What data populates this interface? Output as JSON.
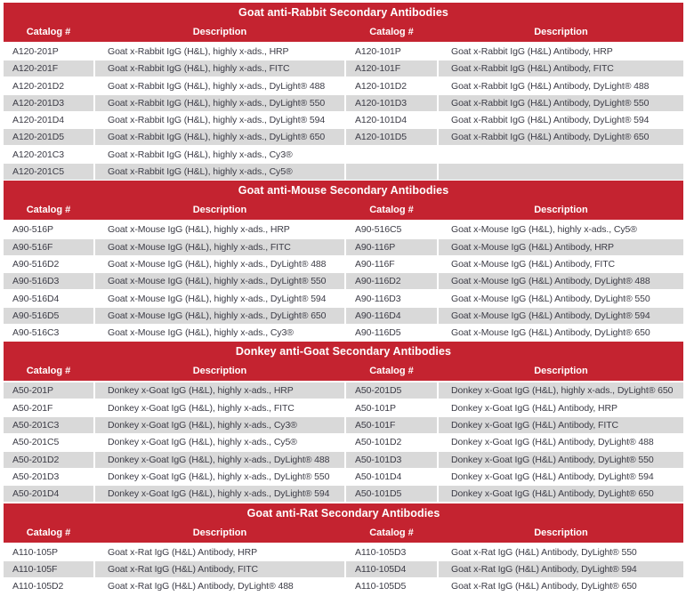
{
  "colors": {
    "banner_red": "#C42330",
    "stripe_gray": "#D9D9D9",
    "row_text": "#3C3C46",
    "header_text": "#FFFFFF"
  },
  "table": {
    "sections": [
      {
        "title": "Goat anti-Rabbit Secondary Antibodies",
        "columns": [
          "Catalog #",
          "Description",
          "Catalog #",
          "Description"
        ],
        "rows": [
          [
            "A120-201P",
            "Goat x-Rabbit IgG (H&L), highly x-ads., HRP",
            "A120-101P",
            "Goat x-Rabbit IgG (H&L) Antibody, HRP"
          ],
          [
            "A120-201F",
            "Goat x-Rabbit IgG (H&L), highly x-ads., FITC",
            "A120-101F",
            "Goat x-Rabbit IgG (H&L) Antibody, FITC"
          ],
          [
            "A120-201D2",
            "Goat x-Rabbit IgG (H&L), highly x-ads., DyLight® 488",
            "A120-101D2",
            "Goat x-Rabbit IgG (H&L) Antibody, DyLight® 488"
          ],
          [
            "A120-201D3",
            "Goat x-Rabbit IgG (H&L), highly x-ads., DyLight® 550",
            "A120-101D3",
            "Goat x-Rabbit IgG (H&L) Antibody, DyLight® 550"
          ],
          [
            "A120-201D4",
            "Goat x-Rabbit IgG (H&L), highly x-ads., DyLight® 594",
            "A120-101D4",
            "Goat x-Rabbit IgG (H&L) Antibody, DyLight® 594"
          ],
          [
            "A120-201D5",
            "Goat x-Rabbit IgG (H&L), highly x-ads., DyLight® 650",
            "A120-101D5",
            "Goat x-Rabbit IgG (H&L) Antibody, DyLight® 650"
          ],
          [
            "A120-201C3",
            "Goat x-Rabbit IgG (H&L), highly x-ads., Cy3®",
            "",
            ""
          ],
          [
            "A120-201C5",
            "Goat x-Rabbit IgG (H&L), highly x-ads., Cy5®",
            "",
            ""
          ]
        ]
      },
      {
        "title": "Goat anti-Mouse Secondary Antibodies",
        "columns": [
          "Catalog #",
          "Description",
          "Catalog #",
          "Description"
        ],
        "rows": [
          [
            "A90-516P",
            "Goat x-Mouse IgG (H&L), highly x-ads., HRP",
            "A90-516C5",
            "Goat x-Mouse IgG (H&L), highly x-ads., Cy5®"
          ],
          [
            "A90-516F",
            "Goat x-Mouse IgG (H&L), highly x-ads., FITC",
            "A90-116P",
            "Goat x-Mouse IgG (H&L) Antibody, HRP"
          ],
          [
            "A90-516D2",
            "Goat x-Mouse IgG (H&L), highly x-ads., DyLight® 488",
            "A90-116F",
            "Goat x-Mouse IgG (H&L) Antibody, FITC"
          ],
          [
            "A90-516D3",
            "Goat x-Mouse IgG (H&L), highly x-ads., DyLight® 550",
            "A90-116D2",
            "Goat x-Mouse IgG (H&L) Antibody, DyLight® 488"
          ],
          [
            "A90-516D4",
            "Goat x-Mouse IgG (H&L), highly x-ads., DyLight® 594",
            "A90-116D3",
            "Goat x-Mouse IgG (H&L) Antibody, DyLight® 550"
          ],
          [
            "A90-516D5",
            "Goat x-Mouse IgG (H&L), highly x-ads., DyLight® 650",
            "A90-116D4",
            "Goat x-Mouse IgG (H&L) Antibody, DyLight® 594"
          ],
          [
            "A90-516C3",
            "Goat x-Mouse IgG (H&L), highly x-ads., Cy3®",
            "A90-116D5",
            "Goat x-Mouse IgG (H&L) Antibody, DyLight® 650"
          ]
        ]
      },
      {
        "title": "Donkey anti-Goat Secondary Antibodies",
        "columns": [
          "Catalog #",
          "Description",
          "Catalog #",
          "Description"
        ],
        "rows": [
          [
            "A50-201P",
            "Donkey x-Goat IgG (H&L), highly x-ads., HRP",
            "A50-201D5",
            "Donkey x-Goat IgG (H&L), highly x-ads., DyLight® 650"
          ],
          [
            "A50-201F",
            "Donkey x-Goat IgG (H&L), highly x-ads., FITC",
            "A50-101P",
            "Donkey x-Goat IgG (H&L) Antibody, HRP"
          ],
          [
            "A50-201C3",
            "Donkey x-Goat IgG (H&L), highly x-ads., Cy3®",
            "A50-101F",
            "Donkey x-Goat IgG (H&L) Antibody, FITC"
          ],
          [
            "A50-201C5",
            "Donkey x-Goat IgG (H&L), highly x-ads., Cy5®",
            "A50-101D2",
            "Donkey x-Goat IgG (H&L) Antibody, DyLight® 488"
          ],
          [
            "A50-201D2",
            "Donkey x-Goat IgG (H&L), highly x-ads., DyLight® 488",
            "A50-101D3",
            "Donkey x-Goat IgG (H&L) Antibody, DyLight® 550"
          ],
          [
            "A50-201D3",
            "Donkey x-Goat IgG (H&L), highly x-ads., DyLight® 550",
            "A50-101D4",
            "Donkey x-Goat IgG (H&L) Antibody, DyLight® 594"
          ],
          [
            "A50-201D4",
            "Donkey x-Goat IgG (H&L), highly x-ads., DyLight® 594",
            "A50-101D5",
            "Donkey x-Goat IgG (H&L) Antibody, DyLight® 650"
          ]
        ]
      },
      {
        "title": "Goat anti-Rat Secondary Antibodies",
        "columns": [
          "Catalog #",
          "Description",
          "Catalog #",
          "Description"
        ],
        "rows": [
          [
            "A110-105P",
            "Goat x-Rat IgG (H&L) Antibody, HRP",
            "A110-105D3",
            "Goat x-Rat IgG (H&L) Antibody, DyLight® 550"
          ],
          [
            "A110-105F",
            "Goat x-Rat IgG (H&L) Antibody, FITC",
            "A110-105D4",
            "Goat x-Rat IgG (H&L) Antibody, DyLight® 594"
          ],
          [
            "A110-105D2",
            "Goat x-Rat IgG (H&L) Antibody, DyLight® 488",
            "A110-105D5",
            "Goat x-Rat IgG (H&L) Antibody, DyLight® 650"
          ]
        ]
      }
    ]
  }
}
